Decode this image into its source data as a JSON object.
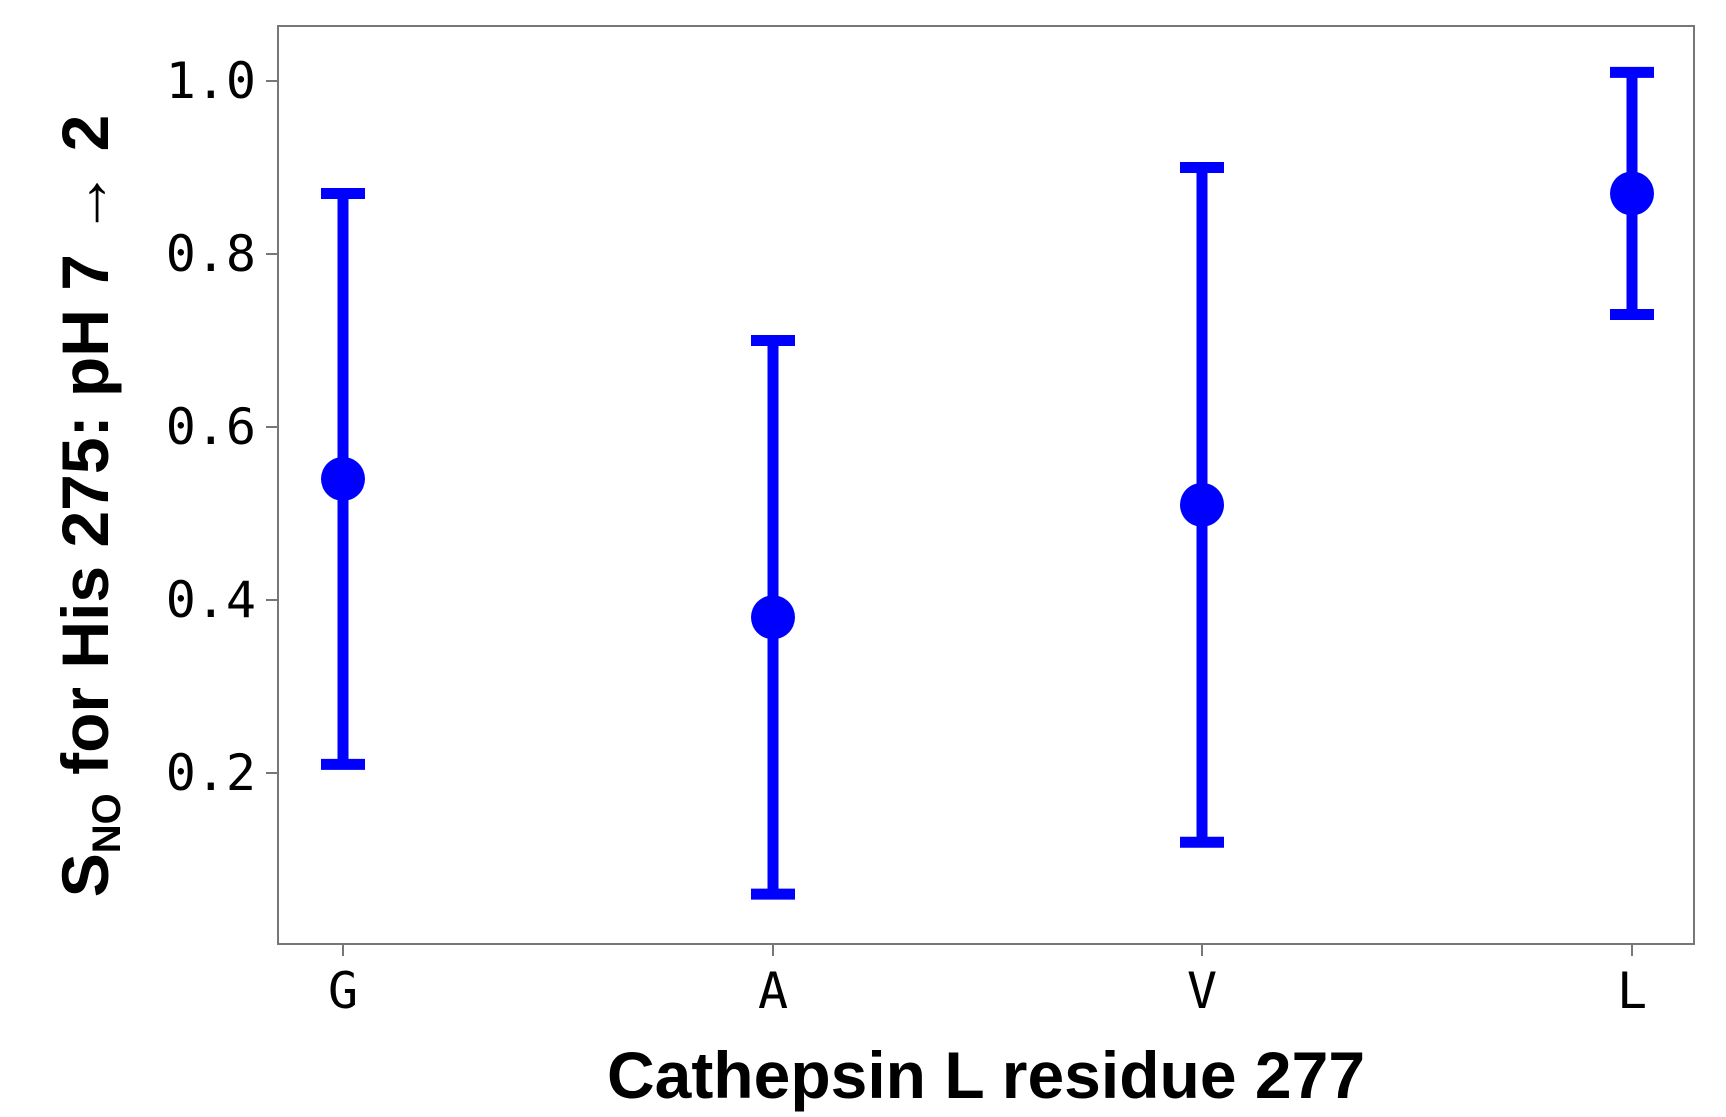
{
  "chart_data": {
    "type": "scatter",
    "categories": [
      "G",
      "A",
      "V",
      "L"
    ],
    "series": [
      {
        "points": [
          {
            "x": "G",
            "y": 0.54,
            "err_low": 0.21,
            "err_high": 0.87
          },
          {
            "x": "A",
            "y": 0.38,
            "err_low": 0.06,
            "err_high": 0.7
          },
          {
            "x": "V",
            "y": 0.51,
            "err_low": 0.12,
            "err_high": 0.9
          },
          {
            "x": "L",
            "y": 0.87,
            "err_low": 0.73,
            "err_high": 1.01
          }
        ]
      }
    ],
    "xlabel": "Cathepsin L residue 277",
    "ylabel": {
      "prefix": "S",
      "subscript": "NO",
      "suffix": " for His 275: pH  7 → 2"
    },
    "ylim": [
      0.0,
      1.065
    ],
    "yticks": [
      "0.2",
      "0.4",
      "0.6",
      "0.8",
      "1.0"
    ],
    "ytick_values": [
      0.2,
      0.4,
      0.6,
      0.8,
      1.0
    ],
    "grid": false,
    "legend": "none",
    "colors": {
      "series": "#0000ff",
      "frame": "#777777",
      "text": "#000000"
    }
  }
}
